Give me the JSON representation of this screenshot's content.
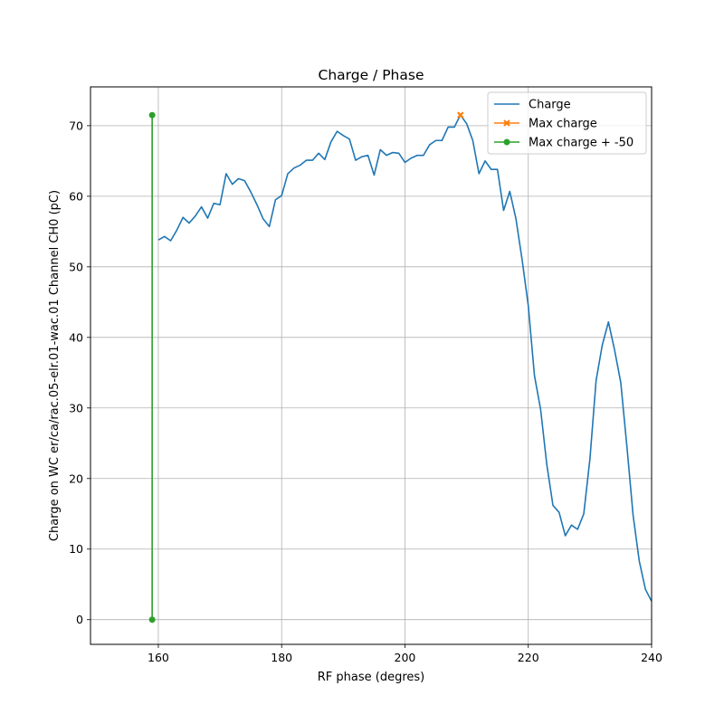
{
  "chart_data": {
    "type": "line",
    "title": "Charge / Phase",
    "xlabel": "RF phase (degres)",
    "ylabel": "Charge on WC er/ca/rac.05-elr.01-wac.01 Channel CH0 (pC)",
    "xlim": [
      149,
      240
    ],
    "ylim": [
      -3.5,
      75.5
    ],
    "xticks": [
      160,
      180,
      200,
      220,
      240
    ],
    "yticks": [
      0,
      10,
      20,
      30,
      40,
      50,
      60,
      70
    ],
    "grid": true,
    "legend_position": "top-right",
    "series": [
      {
        "name": "Charge",
        "color": "#1f77b4",
        "marker": "none",
        "x": [
          160,
          161,
          162,
          163,
          164,
          165,
          166,
          167,
          168,
          169,
          170,
          171,
          172,
          173,
          174,
          175,
          176,
          177,
          178,
          179,
          180,
          181,
          182,
          183,
          184,
          185,
          186,
          187,
          188,
          189,
          190,
          191,
          192,
          193,
          194,
          195,
          196,
          197,
          198,
          199,
          200,
          201,
          202,
          203,
          204,
          205,
          206,
          207,
          208,
          209,
          210,
          211,
          212,
          213,
          214,
          215,
          216,
          217,
          218,
          219,
          220,
          221,
          222,
          223,
          224,
          225,
          226,
          227,
          228,
          229,
          230,
          231,
          232,
          233,
          234,
          235,
          236,
          237,
          238,
          239,
          240
        ],
        "y": [
          53.8,
          54.3,
          53.7,
          55.2,
          57.0,
          56.2,
          57.2,
          58.5,
          56.9,
          59.0,
          58.8,
          63.2,
          61.7,
          62.5,
          62.2,
          60.6,
          58.8,
          56.8,
          55.7,
          59.5,
          60.1,
          63.2,
          64.0,
          64.4,
          65.1,
          65.1,
          66.1,
          65.2,
          67.7,
          69.2,
          68.6,
          68.1,
          65.1,
          65.6,
          65.8,
          63.0,
          66.6,
          65.8,
          66.2,
          66.1,
          64.8,
          65.4,
          65.8,
          65.8,
          67.3,
          67.9,
          67.9,
          69.8,
          69.8,
          71.5,
          70.3,
          67.9,
          63.2,
          65.0,
          63.8,
          63.8,
          58.0,
          60.7,
          56.8,
          51.0,
          44.5,
          34.6,
          29.8,
          22.0,
          16.2,
          15.2,
          11.9,
          13.4,
          12.8,
          15.0,
          22.8,
          33.9,
          38.9,
          42.2,
          38.2,
          33.6,
          24.5,
          14.8,
          8.3,
          4.3,
          2.6
        ]
      },
      {
        "name": "Max charge",
        "color": "#ff7f0e",
        "marker": "x",
        "x": [
          209
        ],
        "y": [
          71.5
        ]
      },
      {
        "name": "Max charge + -50",
        "color": "#2ca02c",
        "marker": "o",
        "x": [
          159,
          159
        ],
        "y": [
          71.5,
          0
        ]
      }
    ]
  }
}
